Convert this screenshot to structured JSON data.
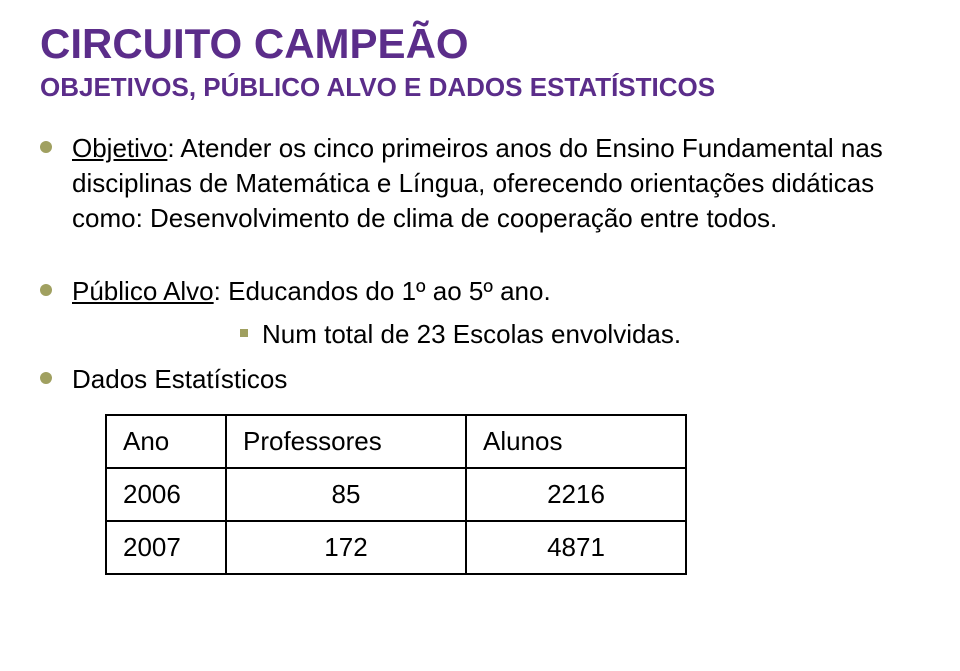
{
  "title": {
    "text": "CIRCUITO CAMPEÃO",
    "color": "#5b2d8a"
  },
  "subtitle": {
    "text": "OBJETIVOS, PÚBLICO ALVO E DADOS ESTATÍSTICOS",
    "color": "#5b2d8a"
  },
  "bullet_color": "#a0a060",
  "text_color": "#000000",
  "bullets": {
    "objetivo": {
      "label": "Objetivo",
      "text": ": Atender os cinco primeiros anos do Ensino Fundamental nas disciplinas de Matemática e Língua, oferecendo orientações didáticas como: Desenvolvimento de clima de cooperação entre todos."
    },
    "publico": {
      "label": "Público Alvo",
      "text": ": Educandos do 1º ao 5º ano."
    },
    "sub": {
      "text": "Num total de 23 Escolas envolvidas."
    },
    "dados": {
      "text": "Dados Estatísticos"
    }
  },
  "table": {
    "border_color": "#000000",
    "header": {
      "ano": "Ano",
      "prof": "Professores",
      "alun": "Alunos"
    },
    "rows": [
      {
        "ano": "2006",
        "prof": "85",
        "alun": "2216"
      },
      {
        "ano": "2007",
        "prof": "172",
        "alun": "4871"
      }
    ]
  }
}
